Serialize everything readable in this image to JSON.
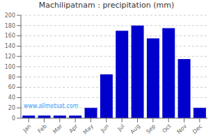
{
  "chart_data": {
    "type": "bar",
    "title": "Machilipatnam : precipitation (mm)",
    "categories": [
      "Jan",
      "Feb",
      "Mar",
      "Apr",
      "May",
      "Jun",
      "Jul",
      "Aug",
      "Sep",
      "Oct",
      "Nov",
      "Dec"
    ],
    "values": [
      5,
      5,
      5,
      5,
      20,
      85,
      170,
      180,
      155,
      175,
      115,
      20
    ],
    "color": "#0000CC",
    "ylim": [
      0,
      200
    ],
    "yticks": [
      0,
      20,
      40,
      60,
      80,
      100,
      120,
      140,
      160,
      180,
      200
    ],
    "grid": true,
    "annotations": [
      "www.allmetsat.com"
    ]
  }
}
